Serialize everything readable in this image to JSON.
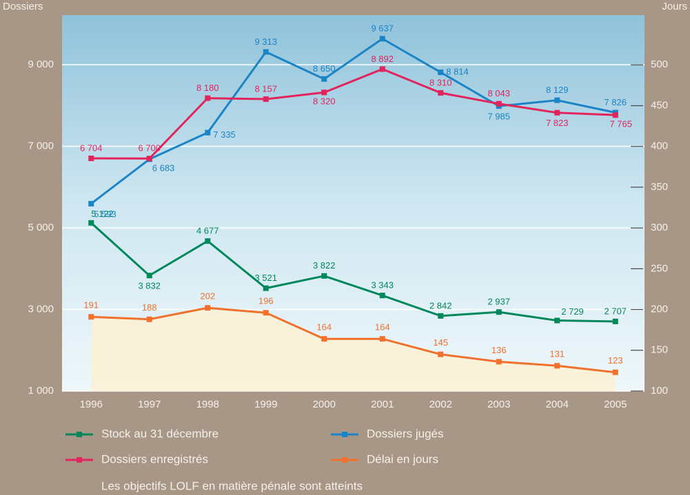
{
  "chart_data": {
    "type": "line",
    "y_axis_label": "Dossiers",
    "y2_axis_label": "Jours",
    "categories": [
      "1996",
      "1997",
      "1998",
      "1999",
      "2000",
      "2001",
      "2002",
      "2003",
      "2004",
      "2005"
    ],
    "series": [
      {
        "name": "Stock au 31 décembre",
        "color": "#00875a",
        "values": [
          5122,
          3832,
          4677,
          3521,
          3822,
          3343,
          2842,
          2937,
          2729,
          2707
        ],
        "value_labels": [
          "5 122",
          "3 832",
          "4 677",
          "3 521",
          "3 822",
          "3 343",
          "2 842",
          "2 937",
          "2 729",
          "2 707"
        ]
      },
      {
        "name": "Dossiers jugés",
        "color": "#1a84c6",
        "values": [
          5593,
          6683,
          7335,
          9313,
          8650,
          9637,
          8814,
          7985,
          8129,
          7826
        ],
        "value_labels": [
          "5 593",
          "6 683",
          "7 335",
          "9 313",
          "8 650",
          "9 637",
          "8 814",
          "7 985",
          "8 129",
          "7 826"
        ]
      },
      {
        "name": "Dossiers enregistrés",
        "color": "#e2235c",
        "values": [
          6704,
          6700,
          8180,
          8157,
          8320,
          8892,
          8310,
          8043,
          7823,
          7765
        ],
        "value_labels": [
          "6 704",
          "6 700",
          "8 180",
          "8 157",
          "8 320",
          "8 892",
          "8 310",
          "8 043",
          "7 823",
          "7 765"
        ]
      },
      {
        "name": "Délai en jours",
        "color": "#f0702c",
        "axis": "y2",
        "values": [
          191,
          188,
          202,
          196,
          164,
          164,
          145,
          136,
          131,
          123
        ]
      }
    ],
    "ylim": [
      1000,
      10215
    ],
    "yticks": [
      {
        "value": 1000,
        "label": "1 000"
      },
      {
        "value": 3000,
        "label": "3 000"
      },
      {
        "value": 5000,
        "label": "5 000"
      },
      {
        "value": 7000,
        "label": "7 000"
      },
      {
        "value": 9000,
        "label": "9 000"
      }
    ],
    "y2lim": [
      100,
      561
    ],
    "y2ticks": [
      100,
      150,
      200,
      250,
      300,
      350,
      400,
      450,
      500
    ],
    "grid": true,
    "note": "Les objectifs LOLF en matière pénale sont atteints"
  }
}
